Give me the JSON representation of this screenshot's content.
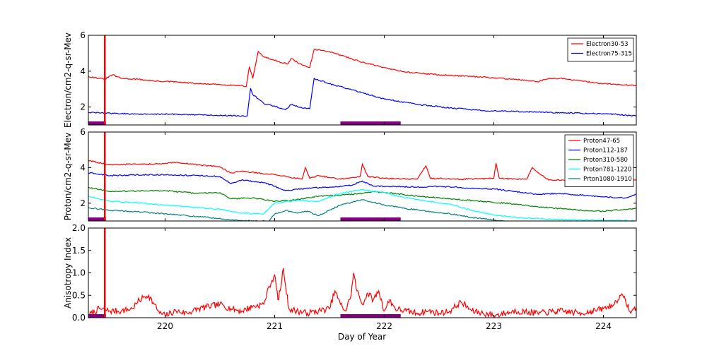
{
  "chart_data": [
    {
      "type": "line",
      "ylabel": "Electron/cm2-q-sr-Mev",
      "ylim": [
        1,
        6
      ],
      "yticks": [
        2,
        4,
        6
      ],
      "xlim": [
        219.3,
        224.3
      ],
      "legend_placement": "top-right",
      "series": [
        {
          "name": "Electron30-53",
          "color": "#ff0000",
          "x": [
            219.3,
            219.45,
            219.52,
            219.6,
            219.75,
            219.9,
            220.1,
            220.3,
            220.5,
            220.7,
            220.74,
            220.77,
            220.8,
            220.85,
            220.9,
            221.0,
            221.12,
            221.15,
            221.25,
            221.32,
            221.36,
            221.45,
            221.6,
            221.8,
            222.0,
            222.2,
            222.5,
            222.8,
            223.2,
            223.4,
            223.5,
            223.6,
            223.8,
            224.0,
            224.3
          ],
          "y": [
            3.7,
            3.55,
            3.8,
            3.6,
            3.55,
            3.45,
            3.4,
            3.3,
            3.25,
            3.2,
            3.15,
            4.25,
            3.6,
            5.1,
            4.8,
            4.6,
            4.4,
            4.7,
            4.35,
            4.2,
            5.2,
            5.15,
            4.9,
            4.5,
            4.2,
            3.95,
            3.8,
            3.7,
            3.55,
            3.4,
            3.6,
            3.6,
            3.45,
            3.3,
            3.2
          ]
        },
        {
          "name": "Electron75-315",
          "color": "#0000ff",
          "x": [
            219.3,
            219.5,
            219.8,
            220.1,
            220.4,
            220.75,
            220.78,
            220.8,
            220.9,
            221.0,
            221.1,
            221.15,
            221.25,
            221.32,
            221.36,
            221.5,
            221.8,
            222.0,
            222.3,
            222.6,
            222.9,
            223.2,
            223.5,
            223.8,
            224.1,
            224.3
          ],
          "y": [
            1.7,
            1.65,
            1.6,
            1.6,
            1.55,
            1.5,
            3.05,
            2.7,
            2.2,
            2.05,
            1.85,
            2.15,
            1.95,
            1.9,
            3.6,
            3.3,
            2.8,
            2.45,
            2.15,
            1.95,
            1.8,
            1.75,
            1.7,
            1.65,
            1.6,
            1.5
          ]
        }
      ]
    },
    {
      "type": "line",
      "ylabel": "Proton/cm2-q-sr-Mev",
      "ylim": [
        1,
        6
      ],
      "yticks": [
        2,
        4,
        6
      ],
      "xlim": [
        219.3,
        224.3
      ],
      "legend_placement": "top-right",
      "series": [
        {
          "name": "Proton47-65",
          "color": "#ff0000",
          "x": [
            219.3,
            219.5,
            219.7,
            219.9,
            220.1,
            220.3,
            220.5,
            220.6,
            220.7,
            221.0,
            221.25,
            221.28,
            221.32,
            221.4,
            221.6,
            221.78,
            221.8,
            221.85,
            222.0,
            222.3,
            222.38,
            222.42,
            222.7,
            223.0,
            223.02,
            223.05,
            223.2,
            223.3,
            223.35,
            223.5,
            223.8,
            224.0,
            224.3
          ],
          "y": [
            4.4,
            4.15,
            4.2,
            4.2,
            4.3,
            4.15,
            4.05,
            3.7,
            3.8,
            3.6,
            3.35,
            4.0,
            3.4,
            3.55,
            3.35,
            3.5,
            4.2,
            3.5,
            3.4,
            3.35,
            4.1,
            3.4,
            3.35,
            3.4,
            4.25,
            3.4,
            3.35,
            3.35,
            4.0,
            3.3,
            3.25,
            3.2,
            3.3
          ]
        },
        {
          "name": "Proton112-187",
          "color": "#0000ff",
          "x": [
            219.3,
            219.5,
            219.8,
            220.0,
            220.3,
            220.5,
            220.6,
            220.7,
            220.9,
            221.0,
            221.1,
            221.3,
            221.5,
            221.7,
            221.8,
            221.9,
            222.1,
            222.3,
            222.5,
            222.8,
            223.0,
            223.2,
            223.4,
            223.6,
            223.8,
            224.0,
            224.2,
            224.3
          ],
          "y": [
            3.7,
            3.55,
            3.6,
            3.6,
            3.55,
            3.5,
            3.1,
            3.3,
            3.15,
            2.95,
            2.7,
            2.85,
            2.9,
            3.0,
            3.25,
            2.95,
            2.95,
            2.9,
            2.95,
            2.85,
            2.8,
            2.65,
            2.5,
            2.55,
            2.45,
            2.35,
            2.3,
            2.5
          ]
        },
        {
          "name": "Proton310-580",
          "color": "#008000",
          "x": [
            219.3,
            219.5,
            219.8,
            220.0,
            220.3,
            220.5,
            220.6,
            220.8,
            221.0,
            221.2,
            221.4,
            221.6,
            221.8,
            221.9,
            222.0,
            222.3,
            222.6,
            222.9,
            223.2,
            223.4,
            223.6,
            223.8,
            224.0,
            224.3
          ],
          "y": [
            2.9,
            2.65,
            2.7,
            2.7,
            2.55,
            2.6,
            2.25,
            2.3,
            2.1,
            2.2,
            2.4,
            2.45,
            2.55,
            2.65,
            2.6,
            2.4,
            2.25,
            2.1,
            1.95,
            1.8,
            1.7,
            1.6,
            1.55,
            1.7
          ]
        },
        {
          "name": "Proton781-1220",
          "color": "#00ffff",
          "x": [
            219.3,
            219.5,
            219.8,
            220.0,
            220.3,
            220.5,
            220.7,
            220.9,
            221.0,
            221.2,
            221.4,
            221.6,
            221.8,
            222.0,
            222.2,
            222.4,
            222.6,
            222.8,
            223.0,
            223.2,
            223.5,
            223.8,
            224.0,
            224.3
          ],
          "y": [
            2.4,
            2.1,
            2.0,
            1.9,
            1.75,
            1.65,
            1.45,
            1.4,
            2.0,
            2.15,
            2.1,
            2.55,
            2.75,
            2.6,
            2.3,
            2.1,
            1.95,
            1.6,
            1.35,
            1.2,
            1.1,
            1.05,
            1.05,
            1.0
          ]
        },
        {
          "name": "Prton1080-1910",
          "color": "#008080",
          "x": [
            219.3,
            219.5,
            219.8,
            220.0,
            220.2,
            220.4,
            220.6,
            220.8,
            220.95,
            221.0,
            221.1,
            221.2,
            221.3,
            221.4,
            221.6,
            221.8,
            222.0,
            222.2,
            222.4,
            222.6,
            222.8,
            223.0,
            223.1
          ],
          "y": [
            1.75,
            1.6,
            1.5,
            1.4,
            1.3,
            1.2,
            1.05,
            1.0,
            1.0,
            1.4,
            1.6,
            1.45,
            1.55,
            1.3,
            1.9,
            2.2,
            1.9,
            1.7,
            1.55,
            1.4,
            1.2,
            1.05,
            1.0
          ]
        }
      ]
    },
    {
      "type": "line",
      "ylabel": "Anisotropy Index",
      "xlabel": "Day of Year",
      "ylim": [
        0.0,
        2.0
      ],
      "yticks": [
        0.0,
        0.5,
        1.0,
        1.5,
        2.0
      ],
      "ytick_labels": [
        "0.0",
        "0.5",
        "1.0",
        "1.5",
        "2.0"
      ],
      "xlim": [
        219.3,
        224.3
      ],
      "xticks": [
        220,
        221,
        222,
        223,
        224
      ],
      "xtick_labels": [
        "220",
        "221",
        "222",
        "223",
        "224"
      ],
      "series": [
        {
          "color": "#ff0000",
          "x": [
            219.3,
            219.4,
            219.5,
            219.6,
            219.7,
            219.75,
            219.8,
            219.85,
            219.9,
            219.95,
            220.0,
            220.1,
            220.2,
            220.3,
            220.4,
            220.5,
            220.6,
            220.7,
            220.8,
            220.9,
            220.95,
            221.0,
            221.03,
            221.05,
            221.08,
            221.1,
            221.13,
            221.2,
            221.3,
            221.4,
            221.5,
            221.55,
            221.6,
            221.65,
            221.7,
            221.72,
            221.75,
            221.8,
            221.85,
            221.9,
            221.95,
            222.0,
            222.05,
            222.1,
            222.2,
            222.3,
            222.4,
            222.5,
            222.6,
            222.7,
            222.8,
            222.9,
            223.0,
            223.2,
            223.4,
            223.6,
            223.8,
            224.0,
            224.1,
            224.15,
            224.2,
            224.25,
            224.3
          ],
          "y": [
            0.05,
            0.2,
            0.15,
            0.15,
            0.2,
            0.35,
            0.45,
            0.5,
            0.3,
            0.1,
            0.05,
            0.15,
            0.1,
            0.2,
            0.25,
            0.3,
            0.2,
            0.15,
            0.25,
            0.3,
            0.7,
            0.95,
            0.4,
            0.6,
            1.1,
            0.7,
            0.2,
            0.15,
            0.1,
            0.15,
            0.2,
            0.6,
            0.3,
            0.15,
            0.55,
            1.0,
            0.6,
            0.3,
            0.55,
            0.4,
            0.6,
            0.15,
            0.4,
            0.2,
            0.15,
            0.1,
            0.15,
            0.1,
            0.15,
            0.35,
            0.15,
            0.1,
            0.05,
            0.15,
            0.1,
            0.15,
            0.1,
            0.2,
            0.3,
            0.5,
            0.4,
            0.1,
            0.25
          ]
        }
      ]
    }
  ],
  "markers": {
    "vline_day": 219.45,
    "vline_color": "#ff0000",
    "bar_color": "#800080",
    "bars": [
      [
        219.3,
        219.46
      ],
      [
        221.6,
        222.15
      ]
    ]
  }
}
